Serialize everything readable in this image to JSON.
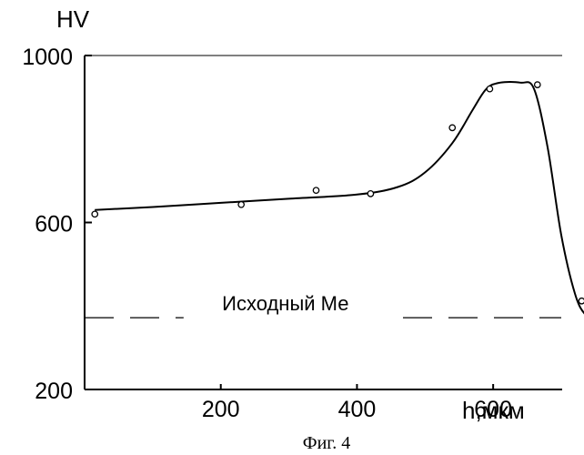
{
  "chart_data": {
    "type": "line",
    "title": "",
    "ylabel": "HV",
    "xlabel": "h,мкм",
    "caption": "Фиг. 4",
    "xlim": [
      0,
      700
    ],
    "ylim": [
      200,
      1000
    ],
    "x_ticks": [
      {
        "value": 200,
        "label": "200"
      },
      {
        "value": 400,
        "label": "400"
      },
      {
        "value": 600,
        "label": "600"
      }
    ],
    "y_ticks": [
      {
        "value": 200,
        "label": "200"
      },
      {
        "value": 600,
        "label": "600"
      },
      {
        "value": 1000,
        "label": "1000"
      }
    ],
    "curve": {
      "x": [
        15,
        100,
        200,
        300,
        400,
        460,
        500,
        540,
        570,
        590,
        610,
        640,
        660,
        680,
        700,
        720,
        735,
        750
      ],
      "y": [
        630,
        637,
        647,
        657,
        667,
        685,
        720,
        790,
        870,
        920,
        935,
        935,
        920,
        780,
        570,
        430,
        380,
        372
      ]
    },
    "points": {
      "x": [
        15,
        230,
        340,
        420,
        540,
        595,
        665,
        730,
        745
      ],
      "y": [
        620,
        643,
        677,
        669,
        827,
        920,
        930,
        412,
        404
      ]
    },
    "reference_line": {
      "y": 372,
      "label": "Исходный Ме",
      "style": "dashed"
    }
  }
}
